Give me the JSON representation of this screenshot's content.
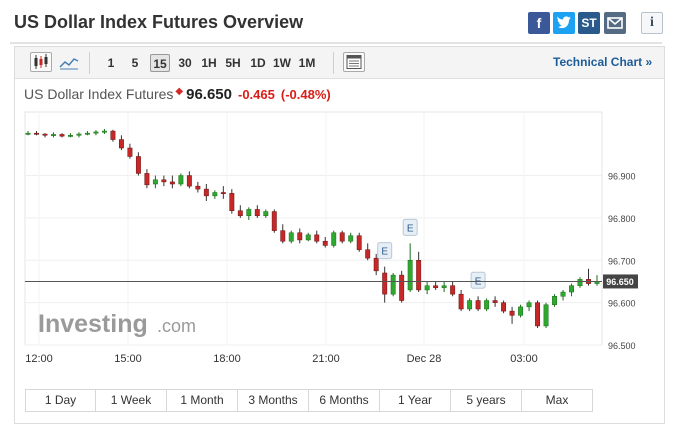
{
  "header": {
    "title": "US Dollar Index Futures Overview",
    "share_icons": [
      "facebook-icon",
      "twitter-icon",
      "stocktwits-icon",
      "mail-icon"
    ],
    "st_label": "ST",
    "info_label": "i"
  },
  "toolbar": {
    "chart_type_icons": [
      "candlestick-icon",
      "line-chart-icon"
    ],
    "intervals": [
      "1",
      "5",
      "15",
      "30",
      "1H",
      "5H",
      "1D",
      "1W",
      "1M"
    ],
    "active_interval": "15",
    "calendar_icon": "calendar-icon",
    "technical_link": "Technical Chart »"
  },
  "quote": {
    "name": "US Dollar Index Futures",
    "last": "96.650",
    "change": "-0.465",
    "change_pct": "(-0.48%)",
    "down_color": "#d91e18"
  },
  "ranges": [
    "1 Day",
    "1 Week",
    "1 Month",
    "3 Months",
    "6 Months",
    "1 Year",
    "5 years",
    "Max"
  ],
  "chart_data": {
    "type": "candlestick",
    "ylim": [
      96.5,
      97.05
    ],
    "yticks": [
      "96.900",
      "96.800",
      "96.700",
      "96.600",
      "96.500"
    ],
    "ytick_values": [
      96.9,
      96.8,
      96.7,
      96.6,
      96.5
    ],
    "xticks": [
      "12:00",
      "15:00",
      "18:00",
      "21:00",
      "Dec 28",
      "03:00"
    ],
    "current_price": 96.65,
    "current_price_label": "96.650",
    "watermark": "Investing.com",
    "watermark_main": "Investing",
    "watermark_suffix": ".com",
    "event_marker_label": "E",
    "event_markers_at_candle": [
      42,
      45,
      53
    ],
    "up_color": "#2ea82e",
    "down_color": "#c62828",
    "candles": [
      [
        97.0,
        97.005,
        96.995,
        97.0
      ],
      [
        97.0,
        97.005,
        96.995,
        96.998
      ],
      [
        96.998,
        97.0,
        96.99,
        96.995
      ],
      [
        96.995,
        97.002,
        96.99,
        96.997
      ],
      [
        96.997,
        97.0,
        96.99,
        96.993
      ],
      [
        96.993,
        97.0,
        96.99,
        96.995
      ],
      [
        96.995,
        97.002,
        96.99,
        96.998
      ],
      [
        96.998,
        97.005,
        96.995,
        97.0
      ],
      [
        97.0,
        97.007,
        96.995,
        97.003
      ],
      [
        97.003,
        97.01,
        96.998,
        97.005
      ],
      [
        97.005,
        97.008,
        96.98,
        96.985
      ],
      [
        96.985,
        96.995,
        96.96,
        96.965
      ],
      [
        96.965,
        96.975,
        96.94,
        96.945
      ],
      [
        96.945,
        96.955,
        96.9,
        96.905
      ],
      [
        96.905,
        96.915,
        96.87,
        96.878
      ],
      [
        96.88,
        96.9,
        96.87,
        96.89
      ],
      [
        96.89,
        96.9,
        96.875,
        96.885
      ],
      [
        96.885,
        96.9,
        96.87,
        96.88
      ],
      [
        96.88,
        96.905,
        96.875,
        96.9
      ],
      [
        96.9,
        96.91,
        96.87,
        96.875
      ],
      [
        96.875,
        96.885,
        96.86,
        96.868
      ],
      [
        96.868,
        96.88,
        96.84,
        96.852
      ],
      [
        96.852,
        96.865,
        96.845,
        96.86
      ],
      [
        96.86,
        96.875,
        96.845,
        96.858
      ],
      [
        96.858,
        96.868,
        96.81,
        96.817
      ],
      [
        96.817,
        96.83,
        96.8,
        96.805
      ],
      [
        96.805,
        96.825,
        96.795,
        96.82
      ],
      [
        96.82,
        96.83,
        96.8,
        96.805
      ],
      [
        96.805,
        96.82,
        96.8,
        96.815
      ],
      [
        96.815,
        96.82,
        96.765,
        96.77
      ],
      [
        96.77,
        96.785,
        96.74,
        96.745
      ],
      [
        96.745,
        96.77,
        96.74,
        96.765
      ],
      [
        96.765,
        96.775,
        96.74,
        96.748
      ],
      [
        96.748,
        96.765,
        96.745,
        96.76
      ],
      [
        96.76,
        96.77,
        96.74,
        96.745
      ],
      [
        96.745,
        96.755,
        96.73,
        96.735
      ],
      [
        96.735,
        96.77,
        96.73,
        96.765
      ],
      [
        96.765,
        96.77,
        96.74,
        96.745
      ],
      [
        96.745,
        96.765,
        96.74,
        96.758
      ],
      [
        96.758,
        96.765,
        96.72,
        96.725
      ],
      [
        96.725,
        96.74,
        96.7,
        96.705
      ],
      [
        96.705,
        96.715,
        96.665,
        96.675
      ],
      [
        96.67,
        96.685,
        96.6,
        96.62
      ],
      [
        96.62,
        96.67,
        96.615,
        96.665
      ],
      [
        96.665,
        96.675,
        96.6,
        96.605
      ],
      [
        96.63,
        96.74,
        96.625,
        96.7
      ],
      [
        96.7,
        96.72,
        96.625,
        96.63
      ],
      [
        96.63,
        96.65,
        96.62,
        96.64
      ],
      [
        96.64,
        96.65,
        96.63,
        96.635
      ],
      [
        96.635,
        96.65,
        96.625,
        96.64
      ],
      [
        96.64,
        96.65,
        96.615,
        96.62
      ],
      [
        96.62,
        96.63,
        96.58,
        96.585
      ],
      [
        96.585,
        96.61,
        96.58,
        96.605
      ],
      [
        96.605,
        96.615,
        96.58,
        96.585
      ],
      [
        96.585,
        96.61,
        96.58,
        96.605
      ],
      [
        96.605,
        96.615,
        96.59,
        96.6
      ],
      [
        96.6,
        96.605,
        96.575,
        96.58
      ],
      [
        96.58,
        96.59,
        96.55,
        96.57
      ],
      [
        96.57,
        96.595,
        96.565,
        96.59
      ],
      [
        96.59,
        96.605,
        96.58,
        96.6
      ],
      [
        96.6,
        96.605,
        96.54,
        96.545
      ],
      [
        96.545,
        96.6,
        96.54,
        96.595
      ],
      [
        96.595,
        96.62,
        96.59,
        96.615
      ],
      [
        96.615,
        96.63,
        96.605,
        96.625
      ],
      [
        96.625,
        96.645,
        96.615,
        96.64
      ],
      [
        96.64,
        96.66,
        96.635,
        96.655
      ],
      [
        96.655,
        96.68,
        96.64,
        96.645
      ],
      [
        96.645,
        96.665,
        96.64,
        96.65
      ]
    ]
  }
}
